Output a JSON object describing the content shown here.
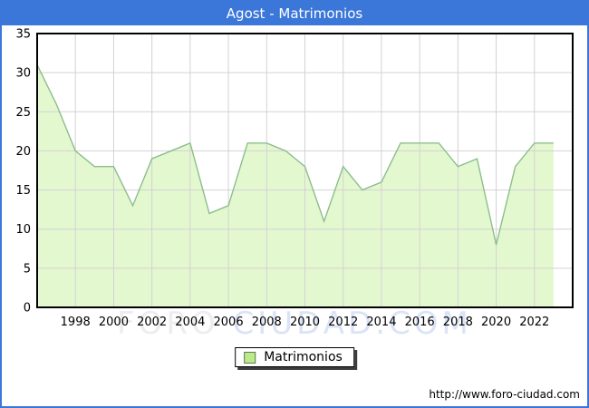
{
  "window": {
    "title": "Agost - Matrimonios"
  },
  "watermark": {
    "part1": "FORO ",
    "part2": "CIUDAD.COM"
  },
  "legend": {
    "label": "Matrimonios"
  },
  "footer": {
    "url": "http://www.foro-ciudad.com"
  },
  "colors": {
    "accent": "#3b76d9",
    "plot_border": "#000000",
    "grid": "#d2d2d2",
    "area_fill": "#e4f8d0",
    "area_line": "#8cbe8c",
    "legend_swatch": "#bce98a",
    "watermark_gray": "#ededed",
    "watermark_blue": "#dbe3f7"
  },
  "chart_data": {
    "type": "area",
    "title": "Agost - Matrimonios",
    "series_name": "Matrimonios",
    "x": [
      1996,
      1997,
      1998,
      1999,
      2000,
      2001,
      2002,
      2003,
      2004,
      2005,
      2006,
      2007,
      2008,
      2009,
      2010,
      2011,
      2012,
      2013,
      2014,
      2015,
      2016,
      2017,
      2018,
      2019,
      2020,
      2021,
      2022,
      2023
    ],
    "values": [
      31,
      26,
      20,
      18,
      18,
      13,
      19,
      20,
      21,
      12,
      13,
      21,
      21,
      20,
      18,
      11,
      18,
      15,
      16,
      21,
      21,
      21,
      18,
      19,
      8,
      18,
      21,
      21
    ],
    "xlabel": "",
    "ylabel": "",
    "ylim": [
      0,
      35
    ],
    "x_axis_range": [
      1996,
      2024
    ],
    "y_ticks": [
      0,
      5,
      10,
      15,
      20,
      25,
      30,
      35
    ],
    "x_ticks": [
      1998,
      2000,
      2002,
      2004,
      2006,
      2008,
      2010,
      2012,
      2014,
      2016,
      2018,
      2020,
      2022
    ],
    "grid": true,
    "legend_position": "bottom-center"
  }
}
